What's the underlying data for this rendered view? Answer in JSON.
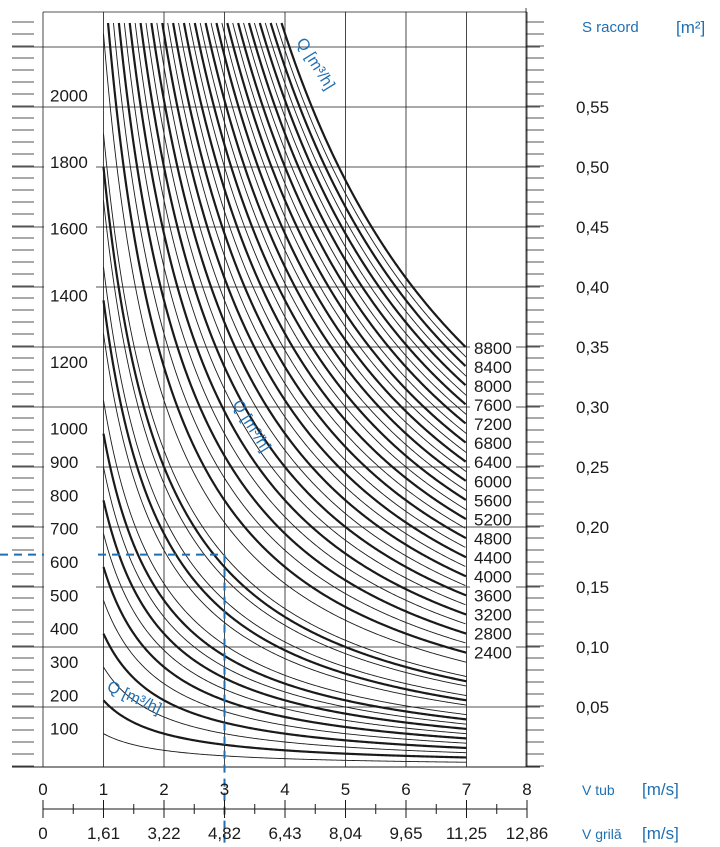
{
  "colors": {
    "curve": "#1a1a1a",
    "grid": "#1a1a1a",
    "accent": "#1f6fb2"
  },
  "chart_data": {
    "type": "line",
    "title": "",
    "grid": true,
    "x_axis_vtub": {
      "label": "V tub",
      "unit": "[m/s]",
      "ticks": [
        "0",
        "1",
        "2",
        "3",
        "4",
        "5",
        "6",
        "7",
        "8"
      ],
      "range": [
        0,
        8
      ]
    },
    "x_axis_vgrila": {
      "label": "V grilă",
      "unit": "[m/s]",
      "ticks": [
        "0",
        "1,61",
        "3,22",
        "4,82",
        "6,43",
        "8,04",
        "9,65",
        "11,25",
        "12,86"
      ]
    },
    "left_scale": {
      "ticks": [
        "2000",
        "1800",
        "1600",
        "1400",
        "1200",
        "1000",
        "900",
        "800",
        "700",
        "600",
        "500",
        "400",
        "300",
        "200",
        "100"
      ]
    },
    "right_axis": {
      "label": "S racord",
      "unit": "[m²]",
      "ticks": [
        "0,55",
        "0,50",
        "0,45",
        "0,40",
        "0,35",
        "0,30",
        "0,25",
        "0,20",
        "0,15",
        "0,10",
        "0,05"
      ],
      "range": [
        0,
        0.6
      ]
    },
    "curve_label": "Q [m³/h]",
    "curve_values_labeled": [
      "8800",
      "8400",
      "8000",
      "7600",
      "7200",
      "6800",
      "6400",
      "6000",
      "5600",
      "5200",
      "4800",
      "4400",
      "4000",
      "3600",
      "3200",
      "2800",
      "2400"
    ],
    "curves_thin_q": [
      100,
      300,
      500,
      700,
      900,
      1100,
      1300,
      1500,
      1700,
      1900,
      2200,
      2600,
      3000,
      3400,
      3800,
      4200,
      4600,
      5000,
      5400,
      5800,
      6200,
      6600,
      7000,
      7400,
      7800,
      8200,
      8600
    ],
    "curves_bold_q": [
      200,
      400,
      600,
      800,
      1000,
      1400,
      1800,
      2400,
      2800,
      3200,
      3600,
      4000,
      4400,
      4800,
      5200,
      5600,
      6000,
      6400,
      6800,
      7200,
      7600,
      8000,
      8400,
      8800
    ],
    "example": {
      "v_tub": 3,
      "s_racord": 0.177
    }
  }
}
